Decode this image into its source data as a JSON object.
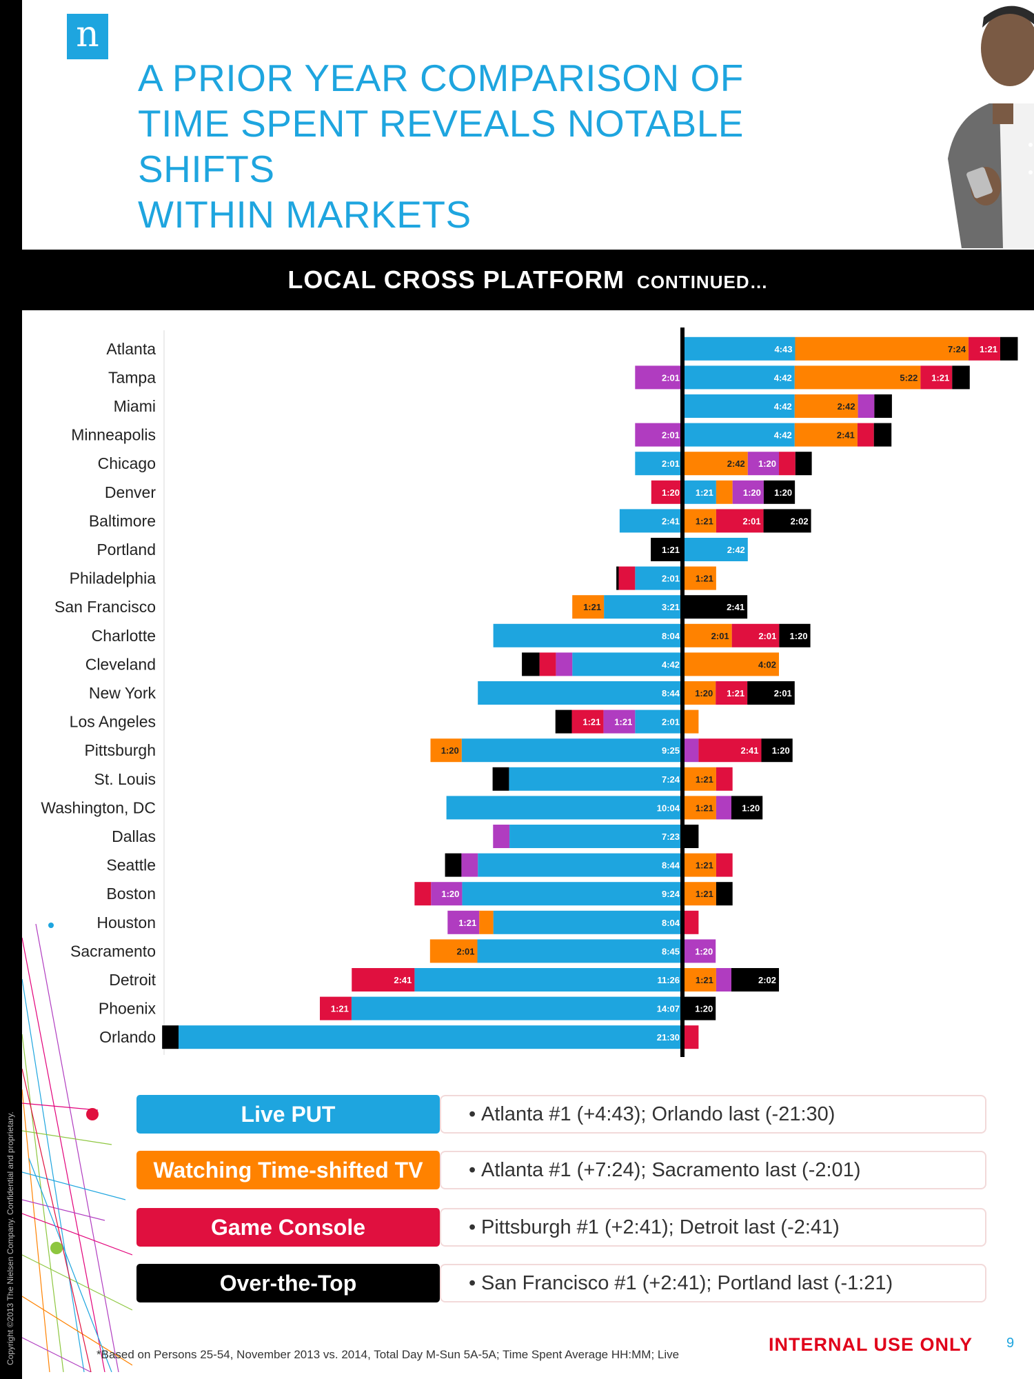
{
  "logo_letter": "n",
  "headline": [
    "A PRIOR YEAR COMPARISON OF",
    "TIME SPENT REVEALS NOTABLE SHIFTS",
    "WITHIN MARKETS"
  ],
  "banner": {
    "main": "LOCAL CROSS PLATFORM",
    "sub": "CONTINUED…"
  },
  "colors": {
    "live_put": "#1ea5df",
    "time_shifted": "#ff8200",
    "game_console": "#e0103f",
    "over_the_top": "#000000",
    "other": "#b03cc0",
    "accent": "#1ea5df"
  },
  "chart_data": {
    "type": "bar",
    "orientation": "horizontal-diverging",
    "unit": "HH:MM",
    "categories": [
      "Atlanta",
      "Tampa",
      "Miami",
      "Minneapolis",
      "Chicago",
      "Denver",
      "Baltimore",
      "Portland",
      "Philadelphia",
      "San Francisco",
      "Charlotte",
      "Cleveland",
      "New York",
      "Los Angeles",
      "Pittsburgh",
      "St. Louis",
      "Washington, DC",
      "Dallas",
      "Seattle",
      "Boston",
      "Houston",
      "Sacramento",
      "Detroit",
      "Phoenix",
      "Orlando"
    ],
    "rows": [
      {
        "neg": [],
        "pos": [
          {
            "s": "live_put",
            "v": 4.72,
            "l": "4:43"
          },
          {
            "s": "time_shifted",
            "v": 7.4,
            "l": "7:24"
          },
          {
            "s": "game_console",
            "v": 1.35,
            "l": "1:21"
          },
          {
            "s": "over_the_top",
            "v": 0.75,
            "l": ""
          }
        ]
      },
      {
        "neg": [
          {
            "s": "other",
            "v": 2.02,
            "l": "2:01"
          }
        ],
        "pos": [
          {
            "s": "live_put",
            "v": 4.7,
            "l": "4:42"
          },
          {
            "s": "time_shifted",
            "v": 5.37,
            "l": "5:22"
          },
          {
            "s": "game_console",
            "v": 1.35,
            "l": "1:21"
          },
          {
            "s": "over_the_top",
            "v": 0.75,
            "l": ""
          }
        ]
      },
      {
        "neg": [],
        "pos": [
          {
            "s": "live_put",
            "v": 4.7,
            "l": "4:42"
          },
          {
            "s": "time_shifted",
            "v": 2.7,
            "l": "2:42"
          },
          {
            "s": "other",
            "v": 0.7,
            "l": ""
          },
          {
            "s": "over_the_top",
            "v": 0.75,
            "l": ""
          }
        ]
      },
      {
        "neg": [
          {
            "s": "other",
            "v": 2.02,
            "l": "2:01"
          }
        ],
        "pos": [
          {
            "s": "live_put",
            "v": 4.7,
            "l": "4:42"
          },
          {
            "s": "time_shifted",
            "v": 2.68,
            "l": "2:41"
          },
          {
            "s": "game_console",
            "v": 0.7,
            "l": ""
          },
          {
            "s": "over_the_top",
            "v": 0.75,
            "l": ""
          }
        ]
      },
      {
        "neg": [
          {
            "s": "live_put",
            "v": 2.02,
            "l": "2:01"
          }
        ],
        "pos": [
          {
            "s": "time_shifted",
            "v": 2.7,
            "l": "2:42"
          },
          {
            "s": "other",
            "v": 1.33,
            "l": "1:20"
          },
          {
            "s": "game_console",
            "v": 0.7,
            "l": ""
          },
          {
            "s": "over_the_top",
            "v": 0.7,
            "l": ""
          }
        ]
      },
      {
        "neg": [
          {
            "s": "game_console",
            "v": 1.33,
            "l": "1:20"
          }
        ],
        "pos": [
          {
            "s": "live_put",
            "v": 1.35,
            "l": "1:21"
          },
          {
            "s": "time_shifted",
            "v": 0.7,
            "l": ""
          },
          {
            "s": "other",
            "v": 1.33,
            "l": "1:20"
          },
          {
            "s": "over_the_top",
            "v": 1.33,
            "l": "1:20"
          }
        ]
      },
      {
        "neg": [
          {
            "s": "live_put",
            "v": 2.68,
            "l": "2:41"
          }
        ],
        "pos": [
          {
            "s": "time_shifted",
            "v": 1.35,
            "l": "1:21"
          },
          {
            "s": "game_console",
            "v": 2.02,
            "l": "2:01"
          },
          {
            "s": "over_the_top",
            "v": 2.03,
            "l": "2:02"
          }
        ]
      },
      {
        "neg": [
          {
            "s": "over_the_top",
            "v": 1.35,
            "l": "1:21"
          }
        ],
        "pos": [
          {
            "s": "live_put",
            "v": 2.7,
            "l": "2:42"
          }
        ]
      },
      {
        "neg": [
          {
            "s": "live_put",
            "v": 2.02,
            "l": "2:01"
          },
          {
            "s": "game_console",
            "v": 0.7,
            "l": ""
          },
          {
            "s": "over_the_top",
            "v": 0.1,
            "l": ""
          }
        ],
        "pos": [
          {
            "s": "time_shifted",
            "v": 1.35,
            "l": "1:21"
          }
        ]
      },
      {
        "neg": [
          {
            "s": "live_put",
            "v": 3.35,
            "l": "3:21"
          },
          {
            "s": "time_shifted",
            "v": 1.35,
            "l": "1:21"
          }
        ],
        "pos": [
          {
            "s": "over_the_top",
            "v": 2.68,
            "l": "2:41"
          }
        ]
      },
      {
        "neg": [
          {
            "s": "live_put",
            "v": 8.07,
            "l": "8:04"
          }
        ],
        "pos": [
          {
            "s": "time_shifted",
            "v": 2.02,
            "l": "2:01"
          },
          {
            "s": "game_console",
            "v": 2.02,
            "l": "2:01"
          },
          {
            "s": "over_the_top",
            "v": 1.33,
            "l": "1:20"
          }
        ]
      },
      {
        "neg": [
          {
            "s": "live_put",
            "v": 4.7,
            "l": "4:42"
          },
          {
            "s": "other",
            "v": 0.7,
            "l": ""
          },
          {
            "s": "game_console",
            "v": 0.7,
            "l": ""
          },
          {
            "s": "over_the_top",
            "v": 0.75,
            "l": ""
          }
        ],
        "pos": [
          {
            "s": "time_shifted",
            "v": 4.03,
            "l": "4:02"
          }
        ]
      },
      {
        "neg": [
          {
            "s": "live_put",
            "v": 8.73,
            "l": "8:44"
          }
        ],
        "pos": [
          {
            "s": "time_shifted",
            "v": 1.33,
            "l": "1:20"
          },
          {
            "s": "game_console",
            "v": 1.35,
            "l": "1:21"
          },
          {
            "s": "over_the_top",
            "v": 2.02,
            "l": "2:01"
          }
        ]
      },
      {
        "neg": [
          {
            "s": "live_put",
            "v": 2.02,
            "l": "2:01"
          },
          {
            "s": "other",
            "v": 1.35,
            "l": "1:21"
          },
          {
            "s": "game_console",
            "v": 1.35,
            "l": "1:21"
          },
          {
            "s": "over_the_top",
            "v": 0.7,
            "l": ""
          }
        ],
        "pos": [
          {
            "s": "time_shifted",
            "v": 0.6,
            "l": ""
          }
        ]
      },
      {
        "neg": [
          {
            "s": "live_put",
            "v": 9.42,
            "l": "9:25"
          },
          {
            "s": "time_shifted",
            "v": 1.33,
            "l": "1:20"
          }
        ],
        "pos": [
          {
            "s": "other",
            "v": 0.6,
            "l": ""
          },
          {
            "s": "game_console",
            "v": 2.68,
            "l": "2:41"
          },
          {
            "s": "over_the_top",
            "v": 1.33,
            "l": "1:20"
          }
        ]
      },
      {
        "neg": [
          {
            "s": "live_put",
            "v": 7.4,
            "l": "7:24"
          },
          {
            "s": "over_the_top",
            "v": 0.7,
            "l": ""
          }
        ],
        "pos": [
          {
            "s": "time_shifted",
            "v": 1.35,
            "l": "1:21"
          },
          {
            "s": "game_console",
            "v": 0.7,
            "l": ""
          }
        ]
      },
      {
        "neg": [
          {
            "s": "live_put",
            "v": 10.07,
            "l": "10:04"
          }
        ],
        "pos": [
          {
            "s": "time_shifted",
            "v": 1.35,
            "l": "1:21"
          },
          {
            "s": "other",
            "v": 0.65,
            "l": ""
          },
          {
            "s": "over_the_top",
            "v": 1.33,
            "l": "1:20"
          }
        ]
      },
      {
        "neg": [
          {
            "s": "live_put",
            "v": 7.38,
            "l": "7:23"
          },
          {
            "s": "other",
            "v": 0.7,
            "l": ""
          }
        ],
        "pos": [
          {
            "s": "over_the_top",
            "v": 0.6,
            "l": ""
          }
        ]
      },
      {
        "neg": [
          {
            "s": "live_put",
            "v": 8.73,
            "l": "8:44"
          },
          {
            "s": "other",
            "v": 0.7,
            "l": ""
          },
          {
            "s": "over_the_top",
            "v": 0.7,
            "l": ""
          }
        ],
        "pos": [
          {
            "s": "time_shifted",
            "v": 1.35,
            "l": "1:21"
          },
          {
            "s": "game_console",
            "v": 0.7,
            "l": ""
          }
        ]
      },
      {
        "neg": [
          {
            "s": "live_put",
            "v": 9.4,
            "l": "9:24"
          },
          {
            "s": "other",
            "v": 1.33,
            "l": "1:20"
          },
          {
            "s": "game_console",
            "v": 0.7,
            "l": ""
          }
        ],
        "pos": [
          {
            "s": "time_shifted",
            "v": 1.35,
            "l": "1:21"
          },
          {
            "s": "over_the_top",
            "v": 0.7,
            "l": ""
          }
        ]
      },
      {
        "neg": [
          {
            "s": "live_put",
            "v": 8.07,
            "l": "8:04"
          },
          {
            "s": "time_shifted",
            "v": 0.6,
            "l": ""
          },
          {
            "s": "other",
            "v": 1.35,
            "l": "1:21"
          }
        ],
        "pos": [
          {
            "s": "game_console",
            "v": 0.6,
            "l": ""
          }
        ]
      },
      {
        "neg": [
          {
            "s": "live_put",
            "v": 8.75,
            "l": "8:45"
          },
          {
            "s": "time_shifted",
            "v": 2.02,
            "l": "2:01"
          }
        ],
        "pos": [
          {
            "s": "other",
            "v": 1.33,
            "l": "1:20"
          }
        ]
      },
      {
        "neg": [
          {
            "s": "live_put",
            "v": 11.43,
            "l": "11:26"
          },
          {
            "s": "game_console",
            "v": 2.68,
            "l": "2:41"
          }
        ],
        "pos": [
          {
            "s": "time_shifted",
            "v": 1.35,
            "l": "1:21"
          },
          {
            "s": "other",
            "v": 0.65,
            "l": ""
          },
          {
            "s": "over_the_top",
            "v": 2.03,
            "l": "2:02"
          }
        ]
      },
      {
        "neg": [
          {
            "s": "live_put",
            "v": 14.12,
            "l": "14:07"
          },
          {
            "s": "game_console",
            "v": 1.35,
            "l": "1:21"
          }
        ],
        "pos": [
          {
            "s": "over_the_top",
            "v": 1.33,
            "l": "1:20"
          }
        ]
      },
      {
        "neg": [
          {
            "s": "live_put",
            "v": 21.5,
            "l": "21:30"
          },
          {
            "s": "over_the_top",
            "v": 0.7,
            "l": ""
          }
        ],
        "pos": [
          {
            "s": "game_console",
            "v": 0.6,
            "l": ""
          }
        ]
      }
    ],
    "legend": [
      {
        "label": "Live PUT",
        "series": "live_put",
        "note": "Atlanta #1 (+4:43); Orlando last (-21:30)"
      },
      {
        "label": "Watching Time-shifted TV",
        "series": "time_shifted",
        "note": "Atlanta #1 (+7:24); Sacramento last (-2:01)"
      },
      {
        "label": "Game Console",
        "series": "game_console",
        "note": "Pittsburgh #1 (+2:41); Detroit last (-2:41)"
      },
      {
        "label": "Over-the-Top",
        "series": "over_the_top",
        "note": "San Francisco #1 (+2:41); Portland last (-1:21)"
      }
    ]
  },
  "footnote": "*Based on Persons 25-54, November 2013 vs. 2014,  Total Day M-Sun 5A-5A; Time Spent Average HH:MM; Live",
  "internal_label": "INTERNAL USE ONLY",
  "page_number": "9",
  "copyright": "Copyright ©2013 The Nielsen Company. Confidential and proprietary."
}
